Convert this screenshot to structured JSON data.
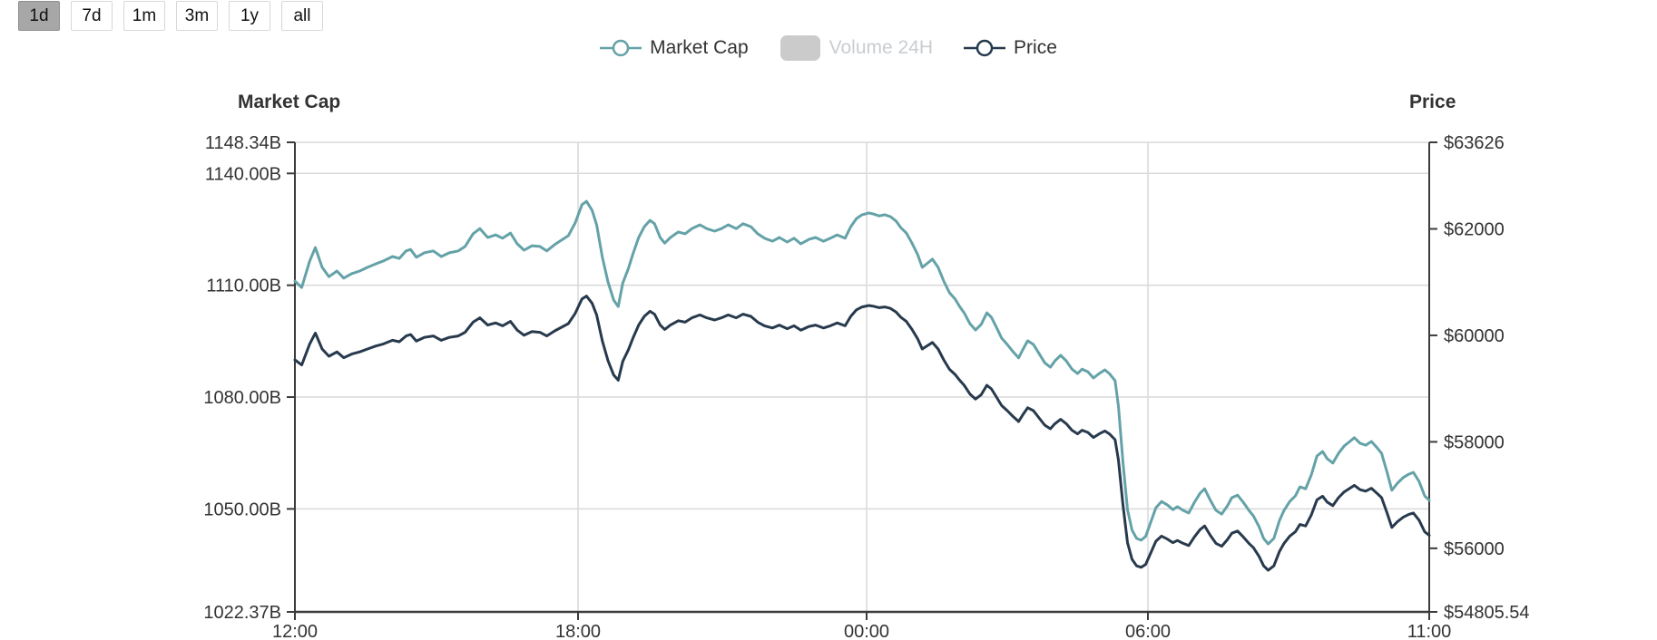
{
  "toolbar": {
    "buttons": [
      {
        "label": "1d",
        "active": true
      },
      {
        "label": "7d",
        "active": false
      },
      {
        "label": "1m",
        "active": false
      },
      {
        "label": "3m",
        "active": false
      },
      {
        "label": "1y",
        "active": false
      },
      {
        "label": "all",
        "active": false
      }
    ]
  },
  "legend": {
    "items": [
      {
        "label": "Market Cap",
        "marker": "line",
        "color": "#64a2a8",
        "disabled": false
      },
      {
        "label": "Volume 24H",
        "marker": "rect",
        "color": "#cbcbcb",
        "disabled": true
      },
      {
        "label": "Price",
        "marker": "line",
        "color": "#273a4d",
        "disabled": false
      }
    ]
  },
  "colors": {
    "teal": "#64a2a8",
    "navy": "#273a4d",
    "grid": "#d9d9d9",
    "axis": "#3c3c3c",
    "text": "#333333",
    "disabled": "#c9cdd1"
  },
  "chart_data": {
    "type": "line",
    "grid": true,
    "legend_position": "top",
    "x_axis": {
      "ticks": [
        {
          "pos": 0,
          "label": "12:00"
        },
        {
          "pos": 0.2496,
          "label": "18:00"
        },
        {
          "pos": 0.504,
          "label": "00:00"
        },
        {
          "pos": 0.752,
          "label": "06:00"
        },
        {
          "pos": 1,
          "label": "11:00"
        }
      ]
    },
    "y_axis_left": {
      "title": "Market Cap",
      "min": 1022.37,
      "max": 1148.34,
      "ticks": [
        {
          "value": 1148.34,
          "label": "1148.34B"
        },
        {
          "value": 1140.0,
          "label": "1140.00B"
        },
        {
          "value": 1110.0,
          "label": "1110.00B"
        },
        {
          "value": 1080.0,
          "label": "1080.00B"
        },
        {
          "value": 1050.0,
          "label": "1050.00B"
        },
        {
          "value": 1022.37,
          "label": "1022.37B"
        }
      ]
    },
    "y_axis_right": {
      "title": "Price",
      "min": 54805.54,
      "max": 63626,
      "ticks": [
        {
          "value": 63626,
          "label": "$63626"
        },
        {
          "value": 62000,
          "label": "$62000"
        },
        {
          "value": 60000,
          "label": "$60000"
        },
        {
          "value": 58000,
          "label": "$58000"
        },
        {
          "value": 56000,
          "label": "$56000"
        },
        {
          "value": 54805.54,
          "label": "$54805.54"
        }
      ]
    },
    "x": [
      0,
      0.006,
      0.013,
      0.018,
      0.024,
      0.03,
      0.037,
      0.043,
      0.05,
      0.057,
      0.064,
      0.071,
      0.078,
      0.086,
      0.092,
      0.098,
      0.102,
      0.107,
      0.114,
      0.122,
      0.129,
      0.136,
      0.144,
      0.15,
      0.157,
      0.163,
      0.17,
      0.177,
      0.183,
      0.19,
      0.196,
      0.202,
      0.209,
      0.216,
      0.222,
      0.229,
      0.235,
      0.241,
      0.247,
      0.253,
      0.257,
      0.262,
      0.266,
      0.271,
      0.276,
      0.281,
      0.285,
      0.289,
      0.294,
      0.298,
      0.303,
      0.308,
      0.313,
      0.317,
      0.322,
      0.326,
      0.331,
      0.338,
      0.344,
      0.35,
      0.357,
      0.363,
      0.37,
      0.376,
      0.382,
      0.389,
      0.395,
      0.402,
      0.408,
      0.414,
      0.421,
      0.427,
      0.434,
      0.44,
      0.446,
      0.453,
      0.459,
      0.466,
      0.472,
      0.478,
      0.485,
      0.49,
      0.495,
      0.5,
      0.506,
      0.51,
      0.515,
      0.52,
      0.525,
      0.53,
      0.534,
      0.539,
      0.544,
      0.549,
      0.553,
      0.558,
      0.562,
      0.567,
      0.572,
      0.577,
      0.582,
      0.586,
      0.59,
      0.595,
      0.6,
      0.605,
      0.61,
      0.614,
      0.618,
      0.623,
      0.628,
      0.633,
      0.638,
      0.642,
      0.646,
      0.651,
      0.656,
      0.661,
      0.666,
      0.67,
      0.675,
      0.68,
      0.685,
      0.69,
      0.694,
      0.699,
      0.704,
      0.709,
      0.714,
      0.718,
      0.723,
      0.726,
      0.73,
      0.734,
      0.738,
      0.742,
      0.746,
      0.75,
      0.754,
      0.759,
      0.764,
      0.769,
      0.774,
      0.778,
      0.783,
      0.788,
      0.793,
      0.798,
      0.802,
      0.807,
      0.812,
      0.817,
      0.822,
      0.826,
      0.831,
      0.836,
      0.841,
      0.845,
      0.85,
      0.854,
      0.858,
      0.863,
      0.868,
      0.872,
      0.877,
      0.882,
      0.886,
      0.891,
      0.896,
      0.901,
      0.906,
      0.91,
      0.915,
      0.92,
      0.925,
      0.93,
      0.934,
      0.939,
      0.944,
      0.949,
      0.954,
      0.958,
      0.963,
      0.967,
      0.972,
      0.977,
      0.982,
      0.986,
      0.991,
      0.996,
      1
    ],
    "series": [
      {
        "name": "Market Cap",
        "axis": "left",
        "unit": "B",
        "color": "#64a2a8",
        "values": [
          1111.1,
          1109.4,
          1116.5,
          1120.1,
          1114.8,
          1112.3,
          1113.8,
          1111.9,
          1113.1,
          1113.8,
          1114.8,
          1115.7,
          1116.5,
          1117.7,
          1117.2,
          1119.2,
          1119.6,
          1117.5,
          1118.7,
          1119.2,
          1117.7,
          1118.7,
          1119.2,
          1120.4,
          1123.8,
          1125.2,
          1122.8,
          1123.5,
          1122.6,
          1124.0,
          1121.1,
          1119.4,
          1120.6,
          1120.4,
          1119.2,
          1120.9,
          1122.1,
          1123.3,
          1126.7,
          1131.6,
          1132.5,
          1130.1,
          1126.2,
          1117.5,
          1110.9,
          1106.0,
          1104.3,
          1110.6,
          1114.5,
          1118.4,
          1122.8,
          1125.7,
          1127.4,
          1126.5,
          1122.8,
          1121.3,
          1122.8,
          1124.3,
          1123.8,
          1125.2,
          1126.2,
          1125.2,
          1124.5,
          1125.2,
          1126.2,
          1125.2,
          1126.5,
          1125.7,
          1123.8,
          1122.6,
          1121.8,
          1122.8,
          1121.6,
          1122.6,
          1121.1,
          1122.3,
          1122.8,
          1121.8,
          1122.6,
          1123.5,
          1122.6,
          1125.7,
          1127.9,
          1128.9,
          1129.4,
          1129.1,
          1128.6,
          1128.9,
          1128.4,
          1127.2,
          1125.5,
          1124.0,
          1121.3,
          1118.2,
          1114.8,
          1116.0,
          1117.0,
          1114.8,
          1111.1,
          1108.0,
          1106.3,
          1104.3,
          1102.6,
          1099.7,
          1098.0,
          1099.5,
          1102.6,
          1101.4,
          1099.0,
          1095.8,
          1094.1,
          1092.2,
          1090.5,
          1092.9,
          1095.1,
          1094.1,
          1091.7,
          1089.2,
          1088.0,
          1089.7,
          1091.2,
          1089.7,
          1087.5,
          1086.3,
          1087.5,
          1086.8,
          1085.1,
          1086.3,
          1087.3,
          1086.3,
          1084.4,
          1077.6,
          1062.5,
          1049.8,
          1044.3,
          1042.1,
          1041.6,
          1042.6,
          1046.0,
          1050.3,
          1052.0,
          1051.1,
          1049.8,
          1050.6,
          1049.6,
          1048.9,
          1051.8,
          1054.2,
          1055.4,
          1052.3,
          1049.6,
          1048.6,
          1050.8,
          1053.0,
          1053.7,
          1051.8,
          1049.6,
          1048.1,
          1045.2,
          1042.1,
          1040.6,
          1042.1,
          1046.9,
          1049.6,
          1052.0,
          1053.5,
          1055.9,
          1055.4,
          1059.1,
          1064.2,
          1065.4,
          1063.5,
          1062.3,
          1064.9,
          1066.9,
          1068.1,
          1069.1,
          1067.6,
          1067.1,
          1068.1,
          1066.4,
          1064.9,
          1059.6,
          1055.0,
          1056.9,
          1058.4,
          1059.3,
          1059.8,
          1057.4,
          1053.5,
          1052.3
        ]
      },
      {
        "name": "Price",
        "axis": "right",
        "unit": "USD",
        "color": "#273a4d",
        "values": [
          59539,
          59444,
          59839,
          60043,
          59743,
          59607,
          59689,
          59580,
          59648,
          59689,
          59743,
          59798,
          59839,
          59907,
          59880,
          59989,
          60016,
          59893,
          59961,
          59989,
          59907,
          59961,
          59989,
          60057,
          60248,
          60329,
          60193,
          60234,
          60180,
          60261,
          60098,
          60002,
          60070,
          60057,
          59989,
          60084,
          60152,
          60220,
          60411,
          60683,
          60738,
          60602,
          60384,
          59893,
          59525,
          59253,
          59158,
          59512,
          59730,
          59948,
          60193,
          60356,
          60452,
          60397,
          60193,
          60111,
          60193,
          60275,
          60248,
          60329,
          60384,
          60329,
          60288,
          60329,
          60384,
          60329,
          60397,
          60356,
          60248,
          60180,
          60139,
          60193,
          60125,
          60180,
          60098,
          60166,
          60193,
          60139,
          60180,
          60234,
          60180,
          60356,
          60479,
          60533,
          60561,
          60547,
          60520,
          60533,
          60506,
          60438,
          60343,
          60261,
          60111,
          59934,
          59743,
          59811,
          59866,
          59743,
          59539,
          59362,
          59266,
          59158,
          59062,
          58899,
          58803,
          58885,
          59062,
          58994,
          58858,
          58681,
          58586,
          58477,
          58381,
          58517,
          58640,
          58586,
          58449,
          58313,
          58245,
          58340,
          58422,
          58340,
          58218,
          58150,
          58218,
          58177,
          58081,
          58150,
          58204,
          58150,
          58041,
          57659,
          56815,
          56106,
          55793,
          55670,
          55643,
          55698,
          55888,
          56134,
          56229,
          56175,
          56106,
          56147,
          56093,
          56052,
          56215,
          56351,
          56420,
          56243,
          56093,
          56038,
          56161,
          56284,
          56325,
          56215,
          56093,
          56011,
          55847,
          55670,
          55589,
          55670,
          55943,
          56093,
          56229,
          56311,
          56447,
          56420,
          56624,
          56910,
          56978,
          56869,
          56801,
          56951,
          57060,
          57128,
          57182,
          57101,
          57073,
          57128,
          57033,
          56951,
          56651,
          56392,
          56501,
          56583,
          56637,
          56664,
          56528,
          56311,
          56243
        ]
      }
    ]
  }
}
